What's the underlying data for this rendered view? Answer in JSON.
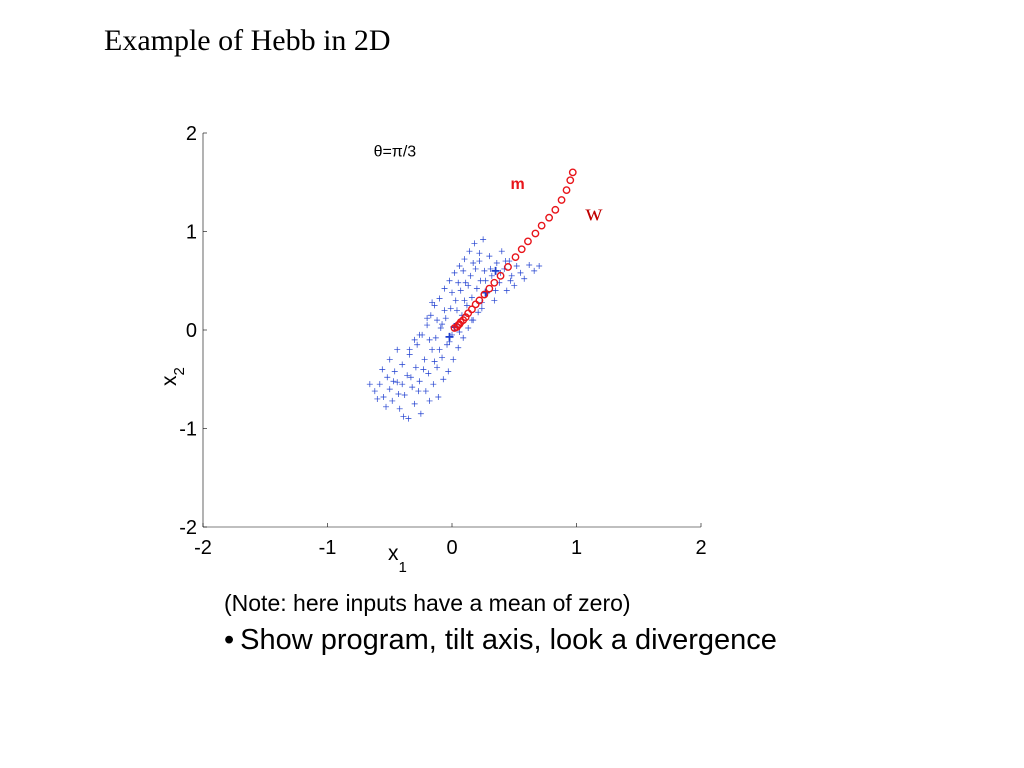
{
  "slide": {
    "title": "Example of Hebb in 2D",
    "note": "(Note: here inputs have a mean of zero)",
    "bullet_marker": "•",
    "bullet": "Show program, tilt axis, look a divergence"
  },
  "chart_data": {
    "type": "scatter",
    "title": "",
    "xlabel": "x",
    "xlabel_sub": "1",
    "ylabel": "x",
    "ylabel_sub": "2",
    "xlim": [
      -2,
      2
    ],
    "ylim": [
      -2,
      2
    ],
    "xticks": [
      -2,
      -1,
      0,
      1,
      2
    ],
    "yticks": [
      -2,
      -1,
      0,
      1,
      2
    ],
    "grid": false,
    "colors": {
      "inputs": "#1f3fcf",
      "weights": "#e8141a",
      "axis": "#000000"
    },
    "annotations": [
      {
        "text": "θ=π/3",
        "x": -0.63,
        "y": 1.76,
        "color": "#000000",
        "font": "sans"
      },
      {
        "text": "m",
        "x": 0.47,
        "y": 1.43,
        "color": "#e8141a",
        "font": "sans-bold"
      },
      {
        "text": "w",
        "x": 1.07,
        "y": 1.11,
        "color": "#c00000",
        "font": "serif"
      }
    ],
    "series": [
      {
        "marker": "plus",
        "points": [
          [
            -0.62,
            -0.62
          ],
          [
            -0.58,
            -0.55
          ],
          [
            -0.55,
            -0.68
          ],
          [
            -0.52,
            -0.48
          ],
          [
            -0.5,
            -0.6
          ],
          [
            -0.48,
            -0.72
          ],
          [
            -0.46,
            -0.42
          ],
          [
            -0.44,
            -0.53
          ],
          [
            -0.42,
            -0.8
          ],
          [
            -0.4,
            -0.35
          ],
          [
            -0.38,
            -0.66
          ],
          [
            -0.36,
            -0.46
          ],
          [
            -0.35,
            -0.9
          ],
          [
            -0.34,
            -0.25
          ],
          [
            -0.32,
            -0.58
          ],
          [
            -0.3,
            -0.75
          ],
          [
            -0.29,
            -0.38
          ],
          [
            -0.28,
            -0.15
          ],
          [
            -0.26,
            -0.52
          ],
          [
            -0.25,
            -0.85
          ],
          [
            -0.24,
            -0.05
          ],
          [
            -0.22,
            -0.3
          ],
          [
            -0.21,
            -0.62
          ],
          [
            -0.2,
            0.05
          ],
          [
            -0.19,
            -0.44
          ],
          [
            -0.18,
            -0.72
          ],
          [
            -0.17,
            0.15
          ],
          [
            -0.16,
            -0.2
          ],
          [
            -0.15,
            -0.55
          ],
          [
            -0.14,
            0.25
          ],
          [
            -0.13,
            -0.08
          ],
          [
            -0.12,
            -0.38
          ],
          [
            -0.11,
            -0.68
          ],
          [
            -0.1,
            0.32
          ],
          [
            -0.09,
            0.02
          ],
          [
            -0.08,
            -0.28
          ],
          [
            -0.07,
            -0.5
          ],
          [
            -0.06,
            0.42
          ],
          [
            -0.05,
            0.12
          ],
          [
            -0.04,
            -0.15
          ],
          [
            -0.03,
            -0.42
          ],
          [
            -0.02,
            0.5
          ],
          [
            -0.01,
            0.22
          ],
          [
            0.0,
            -0.05
          ],
          [
            0.01,
            -0.3
          ],
          [
            0.02,
            0.58
          ],
          [
            0.03,
            0.3
          ],
          [
            0.04,
            0.05
          ],
          [
            0.05,
            -0.18
          ],
          [
            0.06,
            0.65
          ],
          [
            0.07,
            0.4
          ],
          [
            0.08,
            0.15
          ],
          [
            0.09,
            -0.08
          ],
          [
            0.1,
            0.72
          ],
          [
            0.11,
            0.48
          ],
          [
            0.12,
            0.25
          ],
          [
            0.13,
            0.02
          ],
          [
            0.14,
            0.8
          ],
          [
            0.15,
            0.55
          ],
          [
            0.16,
            0.33
          ],
          [
            0.17,
            0.1
          ],
          [
            0.18,
            0.88
          ],
          [
            0.19,
            0.62
          ],
          [
            0.2,
            0.42
          ],
          [
            0.21,
            0.18
          ],
          [
            0.22,
            0.7
          ],
          [
            0.23,
            0.5
          ],
          [
            0.24,
            0.28
          ],
          [
            0.25,
            0.92
          ],
          [
            0.26,
            0.6
          ],
          [
            0.28,
            0.38
          ],
          [
            0.3,
            0.75
          ],
          [
            0.32,
            0.55
          ],
          [
            0.34,
            0.3
          ],
          [
            0.36,
            0.68
          ],
          [
            0.38,
            0.48
          ],
          [
            0.4,
            0.8
          ],
          [
            0.42,
            0.62
          ],
          [
            0.44,
            0.4
          ],
          [
            0.46,
            0.7
          ],
          [
            0.48,
            0.55
          ],
          [
            0.5,
            0.45
          ],
          [
            0.52,
            0.65
          ],
          [
            0.55,
            0.58
          ],
          [
            0.58,
            0.52
          ],
          [
            0.62,
            0.66
          ],
          [
            0.66,
            0.6
          ],
          [
            0.7,
            0.65
          ],
          [
            -0.66,
            -0.55
          ],
          [
            -0.6,
            -0.7
          ],
          [
            -0.56,
            -0.4
          ],
          [
            -0.53,
            -0.78
          ],
          [
            -0.47,
            -0.52
          ],
          [
            -0.43,
            -0.65
          ],
          [
            -0.39,
            -0.88
          ],
          [
            -0.33,
            -0.48
          ],
          [
            -0.27,
            -0.62
          ],
          [
            -0.23,
            -0.4
          ],
          [
            -0.18,
            -0.1
          ],
          [
            -0.12,
            0.1
          ],
          [
            -0.06,
            0.2
          ],
          [
            0.0,
            0.38
          ],
          [
            0.05,
            0.48
          ],
          [
            0.09,
            0.6
          ],
          [
            0.13,
            0.45
          ],
          [
            0.17,
            0.68
          ],
          [
            0.22,
            0.78
          ],
          [
            0.27,
            0.5
          ],
          [
            0.31,
            0.62
          ],
          [
            0.35,
            0.4
          ],
          [
            0.39,
            0.58
          ],
          [
            0.43,
            0.7
          ],
          [
            0.47,
            0.5
          ],
          [
            -0.34,
            -0.2
          ],
          [
            -0.26,
            -0.05
          ],
          [
            -0.2,
            0.12
          ],
          [
            -0.14,
            -0.32
          ],
          [
            -0.08,
            0.06
          ],
          [
            -0.02,
            -0.12
          ],
          [
            0.04,
            0.2
          ],
          [
            0.1,
            0.3
          ],
          [
            0.16,
            0.1
          ],
          [
            0.24,
            0.22
          ],
          [
            -0.5,
            -0.3
          ],
          [
            -0.44,
            -0.2
          ],
          [
            -0.4,
            -0.55
          ],
          [
            -0.3,
            -0.1
          ],
          [
            -0.16,
            0.28
          ],
          [
            -0.1,
            -0.2
          ],
          [
            0.06,
            -0.02
          ]
        ]
      },
      {
        "marker": "plus",
        "points": [
          [
            -0.02,
            -0.07
          ],
          [
            0.02,
            0.03
          ],
          [
            0.27,
            0.38
          ],
          [
            0.35,
            0.6
          ]
        ]
      },
      {
        "marker": "circle",
        "points": [
          [
            0.02,
            0.02
          ],
          [
            0.04,
            0.03
          ],
          [
            0.05,
            0.05
          ],
          [
            0.06,
            0.06
          ],
          [
            0.07,
            0.08
          ],
          [
            0.09,
            0.1
          ],
          [
            0.11,
            0.13
          ],
          [
            0.13,
            0.17
          ],
          [
            0.16,
            0.21
          ],
          [
            0.19,
            0.26
          ],
          [
            0.22,
            0.3
          ],
          [
            0.26,
            0.36
          ],
          [
            0.3,
            0.42
          ],
          [
            0.34,
            0.48
          ],
          [
            0.39,
            0.55
          ],
          [
            0.45,
            0.64
          ],
          [
            0.51,
            0.74
          ],
          [
            0.56,
            0.82
          ],
          [
            0.61,
            0.9
          ],
          [
            0.67,
            0.98
          ],
          [
            0.72,
            1.06
          ],
          [
            0.78,
            1.14
          ],
          [
            0.83,
            1.22
          ],
          [
            0.88,
            1.32
          ],
          [
            0.92,
            1.42
          ],
          [
            0.95,
            1.52
          ],
          [
            0.97,
            1.6
          ]
        ]
      }
    ]
  }
}
